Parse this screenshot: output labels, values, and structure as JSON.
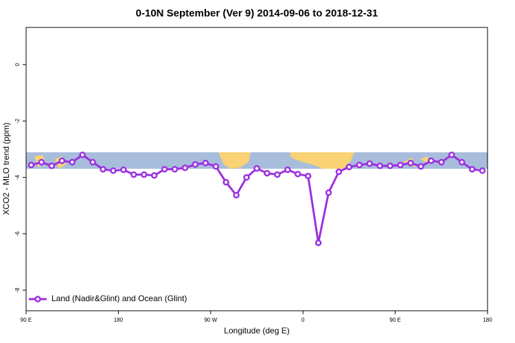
{
  "chart_data": {
    "type": "line",
    "title": "0-10N September (Ver 9)   2014-09-06 to 2018-12-31",
    "xlabel": "Longitude (deg E)",
    "ylabel": "XCO2 - MLO trend (ppm)",
    "x": [
      95,
      105,
      115,
      125,
      135,
      145,
      155,
      165,
      175,
      185,
      195,
      205,
      215,
      225,
      235,
      245,
      255,
      265,
      275,
      285,
      295,
      305,
      315,
      325,
      335,
      345,
      355,
      365,
      375,
      385,
      395,
      405,
      415,
      425,
      435,
      445,
      455,
      465,
      475,
      485,
      495,
      505,
      515,
      525,
      535
    ],
    "series": [
      {
        "name": "Land (Nadir&Glint) and Ocean (Glint)",
        "color": "#9b30e0",
        "values": [
          -3.56,
          -3.46,
          -3.59,
          -3.41,
          -3.46,
          -3.2,
          -3.46,
          -3.71,
          -3.76,
          -3.73,
          -3.9,
          -3.9,
          -3.93,
          -3.71,
          -3.71,
          -3.66,
          -3.54,
          -3.49,
          -3.61,
          -4.17,
          -4.63,
          -4.0,
          -3.68,
          -3.85,
          -3.9,
          -3.73,
          -3.88,
          -3.95,
          -6.32,
          -4.54,
          -3.8,
          -3.63,
          -3.56,
          -3.51,
          -3.59,
          -3.59,
          -3.56,
          -3.49,
          -3.61,
          -3.41,
          -3.46,
          -3.2,
          -3.46,
          -3.71,
          -3.76
        ]
      }
    ],
    "xlim": [
      90,
      540
    ],
    "xticks": [
      {
        "value": 90,
        "label": "90 E"
      },
      180,
      {
        "value": 270,
        "label": "90 W"
      },
      {
        "value": 360,
        "label": "0"
      },
      {
        "value": 450,
        "label": "90 E"
      },
      {
        "value": 540,
        "label": "180"
      }
    ],
    "ylim": [
      -8.73,
      1.32
    ],
    "yticks": [
      0,
      -2,
      -4,
      -6,
      -8
    ],
    "legend": "bottom-left"
  }
}
